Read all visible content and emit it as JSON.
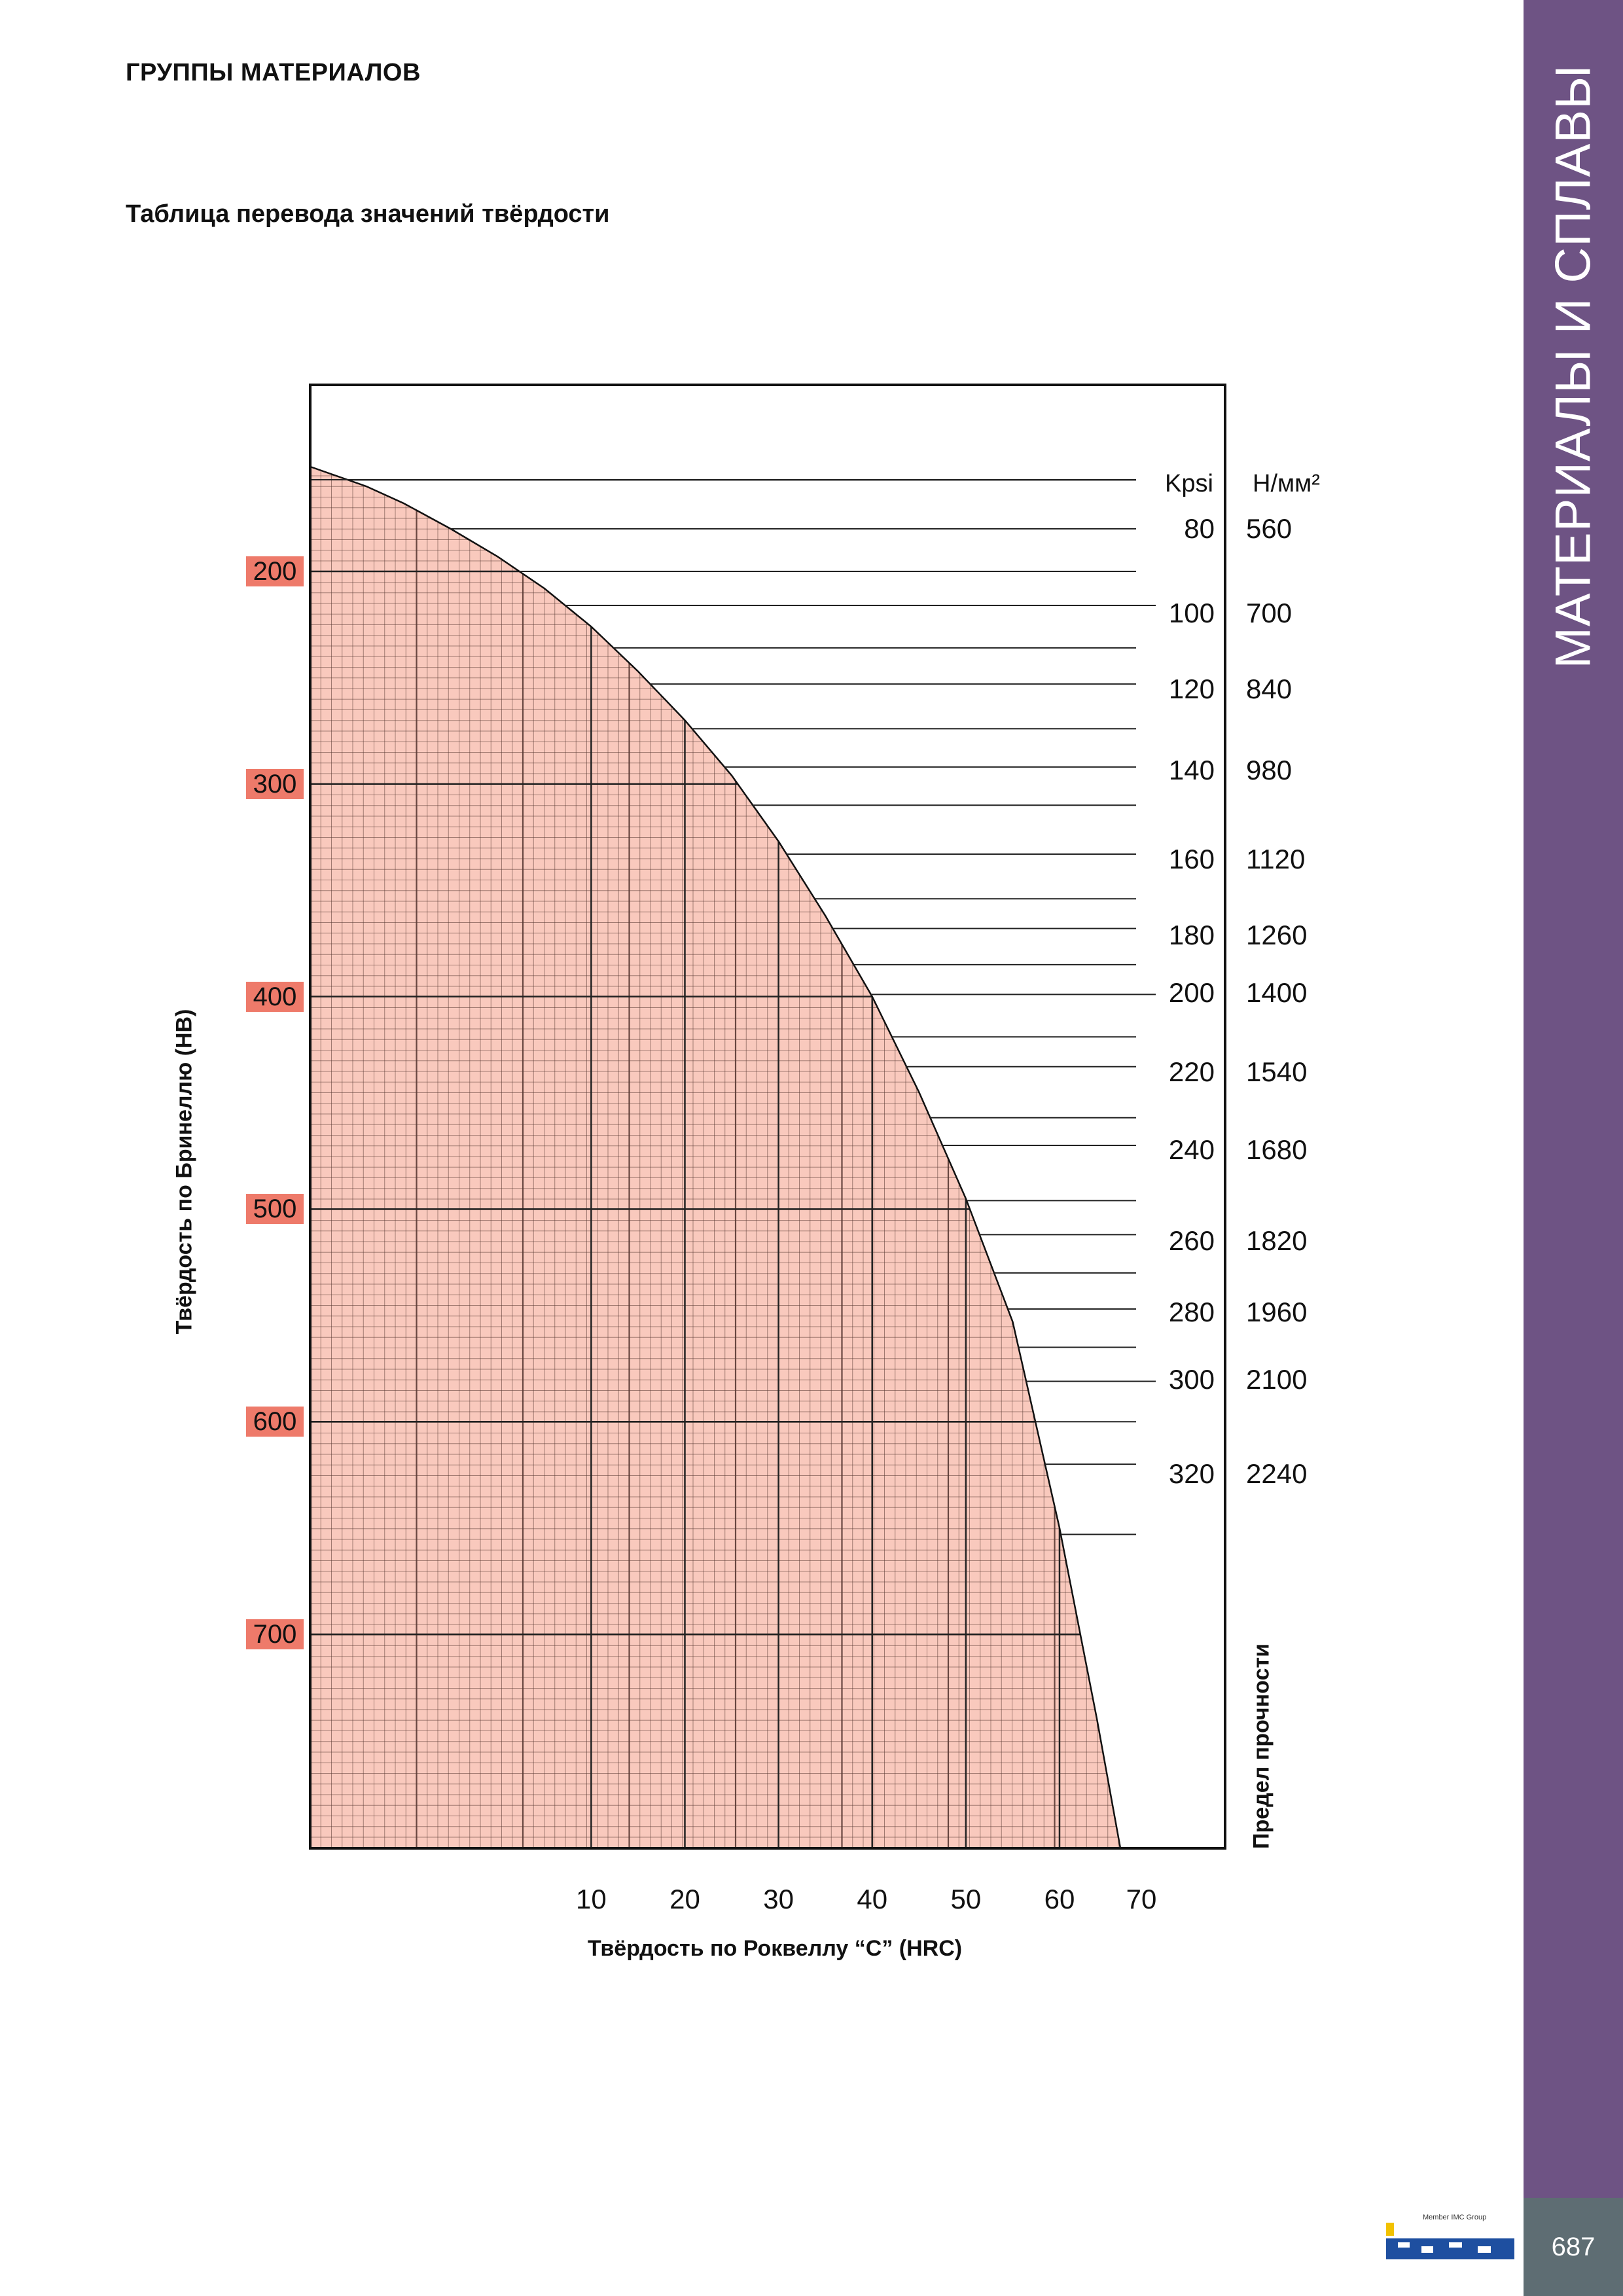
{
  "header": {
    "section_title": "ГРУППЫ МАТЕРИАЛОВ",
    "chart_title": "Таблица перевода значений твёрдости"
  },
  "side_tab": {
    "text": "МАТЕРИАЛЫ И СПЛАВЫ",
    "color": "#6e5384"
  },
  "footer": {
    "page_number": "687",
    "page_box_color": "#5e6d73",
    "logo_text": "Member IMC Group",
    "logo_colors": [
      "#1e4fa0",
      "#f2c200"
    ]
  },
  "colors": {
    "fill": "#f9c9bd",
    "label_bg": "#ee7a6a",
    "grid": "#5a3a34",
    "frame": "#111111"
  },
  "chart_data": {
    "type": "area",
    "title": "Таблица перевода значений твёрдости",
    "ylabel": "Твёрдость по Бринеллю (HB)",
    "xlabel": "Твёрдость по Роквеллу “C” (HRC)",
    "tensile_label": "Предел прочности",
    "y_axis": {
      "labels": [
        "200",
        "300",
        "400",
        "500",
        "600",
        "700"
      ],
      "values": [
        200,
        300,
        400,
        500,
        600,
        700
      ],
      "range": [
        151,
        800
      ],
      "reversed": true
    },
    "x_axis": {
      "labels": [
        "10",
        "20",
        "30",
        "40",
        "50",
        "60",
        "70"
      ],
      "values": [
        10,
        20,
        30,
        40,
        50,
        60,
        70
      ],
      "range": [
        -20,
        66.5
      ]
    },
    "units": {
      "kpsi": "Kpsi",
      "nmm": "Н/мм²"
    },
    "tensile_labels": [
      {
        "kpsi": "80",
        "nmm": "560",
        "hb": 180
      },
      {
        "kpsi": "100",
        "nmm": "700",
        "hb": 216
      },
      {
        "kpsi": "120",
        "nmm": "840",
        "hb": 253
      },
      {
        "kpsi": "140",
        "nmm": "980",
        "hb": 292
      },
      {
        "kpsi": "160",
        "nmm": "1120",
        "hb": 333
      },
      {
        "kpsi": "180",
        "nmm": "1260",
        "hb": 368
      },
      {
        "kpsi": "200",
        "nmm": "1400",
        "hb": 399
      },
      {
        "kpsi": "220",
        "nmm": "1540",
        "hb": 433
      },
      {
        "kpsi": "240",
        "nmm": "1680",
        "hb": 470
      },
      {
        "kpsi": "260",
        "nmm": "1820",
        "hb": 512
      },
      {
        "kpsi": "280",
        "nmm": "1960",
        "hb": 547
      },
      {
        "kpsi": "300",
        "nmm": "2100",
        "hb": 581
      },
      {
        "kpsi": "320",
        "nmm": "2240",
        "hb": 620
      }
    ],
    "tensile_lines_hb": [
      157,
      180,
      200,
      216,
      236,
      253,
      274,
      292,
      310,
      333,
      354,
      368,
      385,
      399,
      419,
      433,
      457,
      470,
      496,
      512,
      530,
      547,
      565,
      581,
      600,
      620,
      653
    ],
    "curve": {
      "x": [
        -20,
        -14,
        -10,
        -5,
        0,
        5,
        10,
        15,
        20,
        25,
        30,
        35,
        40,
        45,
        50,
        55,
        60,
        64,
        66.5
      ],
      "y": [
        151,
        160,
        168,
        180,
        193,
        208,
        226,
        247,
        270,
        296,
        327,
        362,
        400,
        445,
        495,
        553,
        650,
        740,
        800
      ]
    }
  }
}
